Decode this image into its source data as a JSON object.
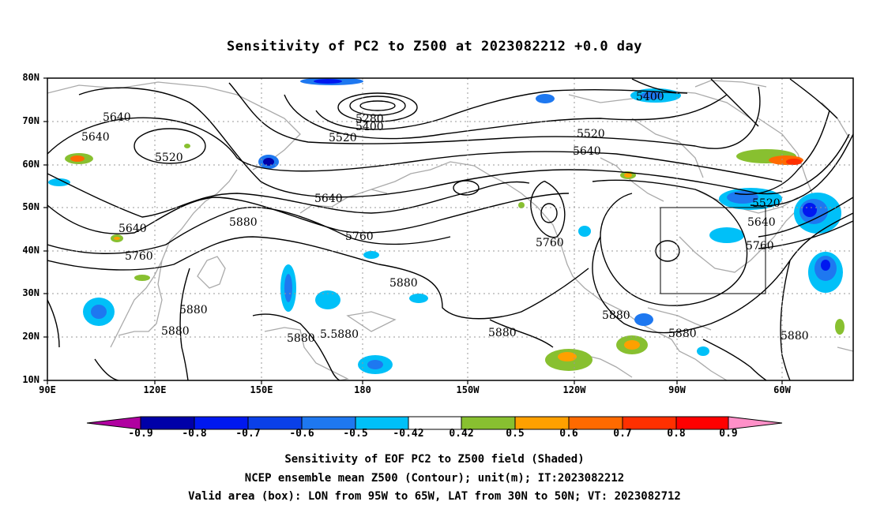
{
  "title": "Sensitivity of PC2 to Z500 at 2023082212 +0.0 day",
  "lat_labels": [
    "80N",
    "70N",
    "60N",
    "50N",
    "40N",
    "30N",
    "20N",
    "10N"
  ],
  "lon_labels": [
    "90E",
    "120E",
    "150E",
    "180",
    "150W",
    "120W",
    "90W",
    "60W"
  ],
  "contour_labels": [
    {
      "text": "5640"
    },
    {
      "text": "5640"
    },
    {
      "text": "5520"
    },
    {
      "text": "5280"
    },
    {
      "text": "5400"
    },
    {
      "text": "5520"
    },
    {
      "text": "5400"
    },
    {
      "text": "5520"
    },
    {
      "text": "5640"
    },
    {
      "text": "5640"
    },
    {
      "text": "5640"
    },
    {
      "text": "5760"
    },
    {
      "text": "5880"
    },
    {
      "text": "5760"
    },
    {
      "text": "5880"
    },
    {
      "text": "5760"
    },
    {
      "text": "5880"
    },
    {
      "text": "5880"
    },
    {
      "text": "5880"
    },
    {
      "text": "5.5880"
    },
    {
      "text": "5880"
    },
    {
      "text": "5880"
    },
    {
      "text": "5880"
    },
    {
      "text": "5520"
    },
    {
      "text": "5640"
    },
    {
      "text": "5760"
    },
    {
      "text": "5880"
    }
  ],
  "colorbar": {
    "labels": [
      "-0.9",
      "-0.8",
      "-0.7",
      "-0.6",
      "-0.5",
      "-0.42",
      "0.42",
      "0.5",
      "0.6",
      "0.7",
      "0.8",
      "0.9"
    ],
    "colors": [
      "#b000a0",
      "#0000a8",
      "#0018f0",
      "#0a40e8",
      "#1e78f0",
      "#00c0f8",
      "#ffffff",
      "#88c030",
      "#ffa000",
      "#ff6a00",
      "#ff3000",
      "#ff0000",
      "#ff90c8"
    ]
  },
  "captions": [
    "Sensitivity of EOF PC2 to Z500 field (Shaded)",
    "NCEP ensemble mean Z500 (Contour); unit(m); IT:2023082212",
    "Valid area (box): LON from 95W to 65W, LAT from 30N to 50N; VT: 2023082712"
  ],
  "valid_area": {
    "lon_from": "95W",
    "lon_to": "65W",
    "lat_from": "30N",
    "lat_to": "50N"
  }
}
